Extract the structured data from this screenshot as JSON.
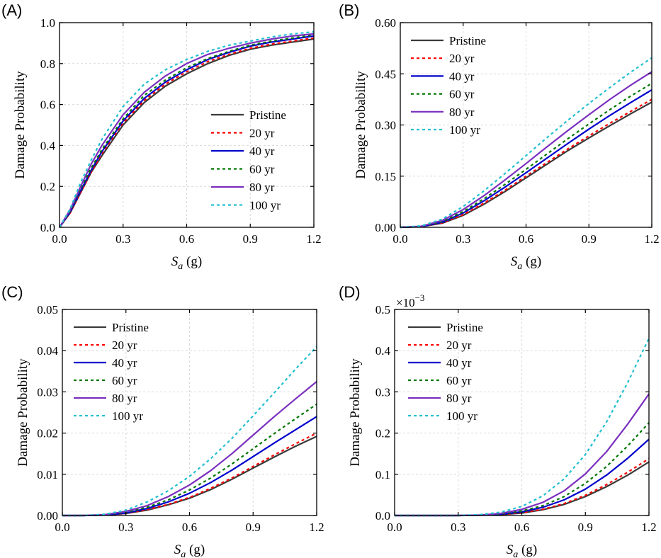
{
  "chart_data": [
    {
      "panel_label": "(A)",
      "type": "line",
      "xlabel_main": "S",
      "xlabel_sub": "a",
      "xlabel_unit": " (g)",
      "ylabel": "Damage Probability",
      "xlim": [
        0,
        1.2
      ],
      "ylim": [
        0,
        1.0
      ],
      "xticks": [
        0.0,
        0.3,
        0.6,
        0.9,
        1.2
      ],
      "xtick_labels": [
        "0.0",
        "0.3",
        "0.6",
        "0.9",
        "1.2"
      ],
      "yticks": [
        0,
        0.2,
        0.4,
        0.6,
        0.8,
        1.0
      ],
      "ytick_labels": [
        "0.0",
        "0.2",
        "0.4",
        "0.6",
        "0.8",
        "1.0"
      ],
      "y_multiplier": "",
      "grid": true,
      "legend_position": "center-right",
      "x": [
        0.0,
        0.05,
        0.1,
        0.15,
        0.2,
        0.3,
        0.4,
        0.5,
        0.6,
        0.7,
        0.8,
        0.9,
        1.0,
        1.1,
        1.2
      ],
      "series": [
        {
          "name": "Pristine",
          "color": "#3a3a3a",
          "dash": "solid",
          "values": [
            0.0,
            0.07,
            0.17,
            0.27,
            0.35,
            0.5,
            0.61,
            0.69,
            0.75,
            0.8,
            0.84,
            0.87,
            0.89,
            0.905,
            0.92
          ]
        },
        {
          "name": "20 yr",
          "color": "#ff0000",
          "dash": "dot",
          "values": [
            0.0,
            0.07,
            0.17,
            0.27,
            0.36,
            0.51,
            0.62,
            0.7,
            0.76,
            0.81,
            0.845,
            0.875,
            0.895,
            0.91,
            0.925
          ]
        },
        {
          "name": "40 yr",
          "color": "#0000cc",
          "dash": "solid",
          "values": [
            0.0,
            0.075,
            0.18,
            0.28,
            0.37,
            0.52,
            0.63,
            0.71,
            0.77,
            0.82,
            0.855,
            0.885,
            0.905,
            0.92,
            0.935
          ]
        },
        {
          "name": "60 yr",
          "color": "#007700",
          "dash": "dot",
          "values": [
            0.0,
            0.08,
            0.19,
            0.29,
            0.38,
            0.53,
            0.645,
            0.72,
            0.78,
            0.825,
            0.86,
            0.89,
            0.91,
            0.925,
            0.94
          ]
        },
        {
          "name": "80 yr",
          "color": "#7b2fbe",
          "dash": "solid",
          "values": [
            0.0,
            0.085,
            0.2,
            0.31,
            0.4,
            0.55,
            0.66,
            0.74,
            0.8,
            0.845,
            0.875,
            0.9,
            0.92,
            0.935,
            0.945
          ]
        },
        {
          "name": "100 yr",
          "color": "#22c0d0",
          "dash": "dot",
          "values": [
            0.0,
            0.09,
            0.22,
            0.33,
            0.43,
            0.59,
            0.7,
            0.77,
            0.82,
            0.86,
            0.89,
            0.91,
            0.93,
            0.945,
            0.955
          ]
        }
      ]
    },
    {
      "panel_label": "(B)",
      "type": "line",
      "xlabel_main": "S",
      "xlabel_sub": "a",
      "xlabel_unit": " (g)",
      "ylabel": "Damage Probability",
      "xlim": [
        0,
        1.2
      ],
      "ylim": [
        0,
        0.6
      ],
      "xticks": [
        0.0,
        0.3,
        0.6,
        0.9,
        1.2
      ],
      "xtick_labels": [
        "0.0",
        "0.3",
        "0.6",
        "0.9",
        "1.2"
      ],
      "yticks": [
        0,
        0.15,
        0.3,
        0.45,
        0.6
      ],
      "ytick_labels": [
        "0.00",
        "0.15",
        "0.30",
        "0.45",
        "0.60"
      ],
      "y_multiplier": "",
      "grid": true,
      "legend_position": "top-left",
      "x": [
        0.0,
        0.1,
        0.2,
        0.3,
        0.4,
        0.5,
        0.6,
        0.7,
        0.8,
        0.9,
        1.0,
        1.1,
        1.2
      ],
      "series": [
        {
          "name": "Pristine",
          "color": "#3a3a3a",
          "dash": "solid",
          "values": [
            0.0,
            0.002,
            0.012,
            0.035,
            0.068,
            0.105,
            0.145,
            0.185,
            0.225,
            0.262,
            0.298,
            0.333,
            0.367
          ]
        },
        {
          "name": "20 yr",
          "color": "#ff0000",
          "dash": "dot",
          "values": [
            0.0,
            0.002,
            0.013,
            0.037,
            0.071,
            0.109,
            0.15,
            0.19,
            0.23,
            0.268,
            0.305,
            0.34,
            0.375
          ]
        },
        {
          "name": "40 yr",
          "color": "#0000cc",
          "dash": "solid",
          "values": [
            0.0,
            0.002,
            0.015,
            0.042,
            0.078,
            0.118,
            0.16,
            0.203,
            0.246,
            0.288,
            0.328,
            0.366,
            0.403
          ]
        },
        {
          "name": "60 yr",
          "color": "#007700",
          "dash": "dot",
          "values": [
            0.0,
            0.003,
            0.017,
            0.046,
            0.084,
            0.126,
            0.17,
            0.215,
            0.26,
            0.303,
            0.345,
            0.385,
            0.422
          ]
        },
        {
          "name": "80 yr",
          "color": "#7b2fbe",
          "dash": "solid",
          "values": [
            0.0,
            0.003,
            0.02,
            0.052,
            0.093,
            0.139,
            0.187,
            0.236,
            0.284,
            0.33,
            0.375,
            0.417,
            0.456
          ]
        },
        {
          "name": "100 yr",
          "color": "#22c0d0",
          "dash": "dot",
          "values": [
            0.0,
            0.004,
            0.024,
            0.061,
            0.107,
            0.158,
            0.21,
            0.263,
            0.314,
            0.363,
            0.41,
            0.455,
            0.497
          ]
        }
      ]
    },
    {
      "panel_label": "(C)",
      "type": "line",
      "xlabel_main": "S",
      "xlabel_sub": "a",
      "xlabel_unit": " (g)",
      "ylabel": "Damage Probability",
      "xlim": [
        0,
        1.2
      ],
      "ylim": [
        0,
        0.05
      ],
      "xticks": [
        0.0,
        0.3,
        0.6,
        0.9,
        1.2
      ],
      "xtick_labels": [
        "0.0",
        "0.3",
        "0.6",
        "0.9",
        "1.2"
      ],
      "yticks": [
        0,
        0.01,
        0.02,
        0.03,
        0.04,
        0.05
      ],
      "ytick_labels": [
        "0.00",
        "0.01",
        "0.02",
        "0.03",
        "0.04",
        "0.05"
      ],
      "y_multiplier": "",
      "grid": true,
      "legend_position": "top-left",
      "x": [
        0.0,
        0.1,
        0.2,
        0.3,
        0.4,
        0.5,
        0.6,
        0.7,
        0.8,
        0.9,
        1.0,
        1.1,
        1.2
      ],
      "series": [
        {
          "name": "Pristine",
          "color": "#3a3a3a",
          "dash": "solid",
          "values": [
            0.0,
            0.0,
            0.0001,
            0.0005,
            0.0013,
            0.0026,
            0.0042,
            0.0063,
            0.0088,
            0.0115,
            0.0142,
            0.0168,
            0.0192
          ]
        },
        {
          "name": "20 yr",
          "color": "#ff0000",
          "dash": "dot",
          "values": [
            0.0,
            0.0,
            0.0001,
            0.0005,
            0.0014,
            0.0027,
            0.0044,
            0.0066,
            0.0091,
            0.0119,
            0.0147,
            0.0174,
            0.02
          ]
        },
        {
          "name": "40 yr",
          "color": "#0000cc",
          "dash": "solid",
          "values": [
            0.0,
            0.0,
            0.0001,
            0.0006,
            0.0017,
            0.0033,
            0.0054,
            0.008,
            0.011,
            0.0143,
            0.0176,
            0.0208,
            0.024
          ]
        },
        {
          "name": "60 yr",
          "color": "#007700",
          "dash": "dot",
          "values": [
            0.0,
            0.0,
            0.0002,
            0.0008,
            0.002,
            0.0038,
            0.0062,
            0.0091,
            0.0125,
            0.0162,
            0.0199,
            0.0235,
            0.027
          ]
        },
        {
          "name": "80 yr",
          "color": "#7b2fbe",
          "dash": "solid",
          "values": [
            0.0,
            0.0,
            0.0002,
            0.001,
            0.0024,
            0.0046,
            0.0074,
            0.0109,
            0.015,
            0.0195,
            0.024,
            0.0283,
            0.0325
          ]
        },
        {
          "name": "100 yr",
          "color": "#22c0d0",
          "dash": "dot",
          "values": [
            0.0,
            0.0,
            0.0003,
            0.0013,
            0.0033,
            0.006,
            0.0095,
            0.0138,
            0.0187,
            0.0242,
            0.0298,
            0.0355,
            0.041
          ]
        }
      ]
    },
    {
      "panel_label": "(D)",
      "type": "line",
      "xlabel_main": "S",
      "xlabel_sub": "a",
      "xlabel_unit": " (g)",
      "ylabel": "Damage Probability",
      "xlim": [
        0,
        1.2
      ],
      "ylim": [
        0,
        0.5
      ],
      "xticks": [
        0.0,
        0.3,
        0.6,
        0.9,
        1.2
      ],
      "xtick_labels": [
        "0.0",
        "0.3",
        "0.6",
        "0.9",
        "1.2"
      ],
      "yticks": [
        0,
        0.1,
        0.2,
        0.3,
        0.4,
        0.5
      ],
      "ytick_labels": [
        "0.0",
        "0.1",
        "0.2",
        "0.3",
        "0.4",
        "0.5"
      ],
      "y_multiplier": "×10",
      "y_multiplier_exp": "−3",
      "grid": true,
      "legend_position": "top-left",
      "x": [
        0.0,
        0.3,
        0.4,
        0.5,
        0.6,
        0.7,
        0.8,
        0.9,
        1.0,
        1.1,
        1.2
      ],
      "series": [
        {
          "name": "Pristine",
          "color": "#3a3a3a",
          "dash": "solid",
          "values": [
            0.0,
            0.0,
            0.0005,
            0.002,
            0.006,
            0.014,
            0.027,
            0.046,
            0.07,
            0.098,
            0.13
          ]
        },
        {
          "name": "20 yr",
          "color": "#ff0000",
          "dash": "dot",
          "values": [
            0.0,
            0.0,
            0.0005,
            0.002,
            0.007,
            0.015,
            0.029,
            0.049,
            0.075,
            0.105,
            0.138
          ]
        },
        {
          "name": "40 yr",
          "color": "#0000cc",
          "dash": "solid",
          "values": [
            0.0,
            0.0,
            0.001,
            0.003,
            0.009,
            0.02,
            0.038,
            0.064,
            0.098,
            0.139,
            0.185
          ]
        },
        {
          "name": "60 yr",
          "color": "#007700",
          "dash": "dot",
          "values": [
            0.0,
            0.0,
            0.001,
            0.004,
            0.011,
            0.024,
            0.046,
            0.078,
            0.119,
            0.169,
            0.225
          ]
        },
        {
          "name": "80 yr",
          "color": "#7b2fbe",
          "dash": "solid",
          "values": [
            0.0,
            0.0,
            0.001,
            0.005,
            0.015,
            0.032,
            0.06,
            0.101,
            0.155,
            0.222,
            0.295
          ]
        },
        {
          "name": "100 yr",
          "color": "#22c0d0",
          "dash": "dot",
          "values": [
            0.0,
            0.0,
            0.002,
            0.008,
            0.022,
            0.048,
            0.089,
            0.148,
            0.227,
            0.323,
            0.43
          ]
        }
      ]
    }
  ]
}
